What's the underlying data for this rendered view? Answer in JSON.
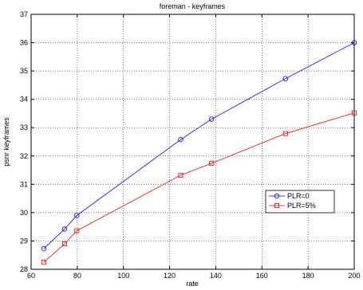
{
  "chart_data": {
    "type": "line",
    "title": "foreman - keyframes",
    "xlabel": "rate",
    "ylabel": "psnr keyframes",
    "xlim": [
      60,
      200
    ],
    "ylim": [
      28,
      37
    ],
    "xticks": [
      60,
      80,
      100,
      120,
      140,
      160,
      180,
      200
    ],
    "yticks": [
      28,
      29,
      30,
      31,
      32,
      33,
      34,
      35,
      36,
      37
    ],
    "grid": true,
    "legend_position": "lower-right",
    "series": [
      {
        "name": "PLR=0",
        "color": "#0000ff",
        "marker": "circle",
        "x": [
          65.5,
          74.5,
          79.8,
          124.8,
          138.2,
          170.2,
          200
        ],
        "y": [
          28.73,
          29.42,
          29.9,
          32.58,
          33.3,
          34.73,
          36.0
        ]
      },
      {
        "name": "PLR=5%",
        "color": "#ff0000",
        "marker": "square",
        "x": [
          65.5,
          74.5,
          79.8,
          124.8,
          138.2,
          170.2,
          200
        ],
        "y": [
          28.25,
          28.9,
          29.36,
          31.32,
          31.74,
          32.79,
          33.52
        ]
      }
    ]
  }
}
